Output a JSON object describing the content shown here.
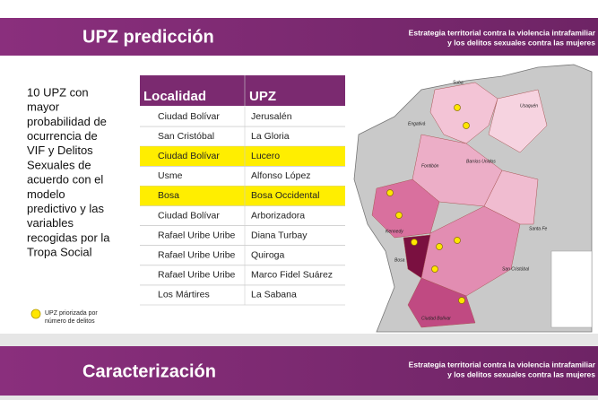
{
  "slide": {
    "header": {
      "title": "UPZ predicción",
      "subtitle_lines": [
        "Estrategia territorial contra la violencia intrafamiliar",
        "y los delitos sexuales contra las mujeres"
      ]
    },
    "description_lines": [
      "10 UPZ con",
      "mayor",
      "probabilidad de",
      "ocurrencia de",
      "VIF y Delitos",
      "Sexuales de",
      "acuerdo con el",
      "modelo",
      "predictivo y las",
      "variables",
      "recogidas por la",
      "Tropa Social"
    ],
    "table": {
      "headers": [
        "Localidad",
        "UPZ"
      ],
      "rows": [
        [
          "Ciudad Bolívar",
          "Jerusalén"
        ],
        [
          "San Cristóbal",
          "La Gloria"
        ],
        [
          "Ciudad Bolívar",
          "Lucero"
        ],
        [
          "Usme",
          "Alfonso López"
        ],
        [
          "Bosa",
          "Bosa Occidental"
        ],
        [
          "Ciudad Bolívar",
          "Arborizadora"
        ],
        [
          "Rafael Uribe Uribe",
          "Diana Turbay"
        ],
        [
          "Rafael Uribe Uribe",
          "Quiroga"
        ],
        [
          "Rafael Uribe Uribe",
          "Marco Fidel Suárez"
        ],
        [
          "Los Mártires",
          "La Sabana"
        ]
      ],
      "highlighted_rows": [
        2,
        4
      ]
    },
    "legend_lines": [
      "UPZ priorizada por",
      "número de delitos"
    ],
    "map_labels": [
      "Suba",
      "Usaquén",
      "Engativá",
      "Kennedy",
      "Bosa",
      "Santa Fe",
      "San Cristóbal",
      "Ciudad Bolívar",
      "Fontibón",
      "Barrios Unidos"
    ]
  },
  "next_slide": {
    "header": {
      "title": "Caracterización",
      "subtitle_lines": [
        "Estrategia territorial contra la violencia intrafamiliar",
        "y los delitos sexuales contra las mujeres"
      ]
    }
  }
}
